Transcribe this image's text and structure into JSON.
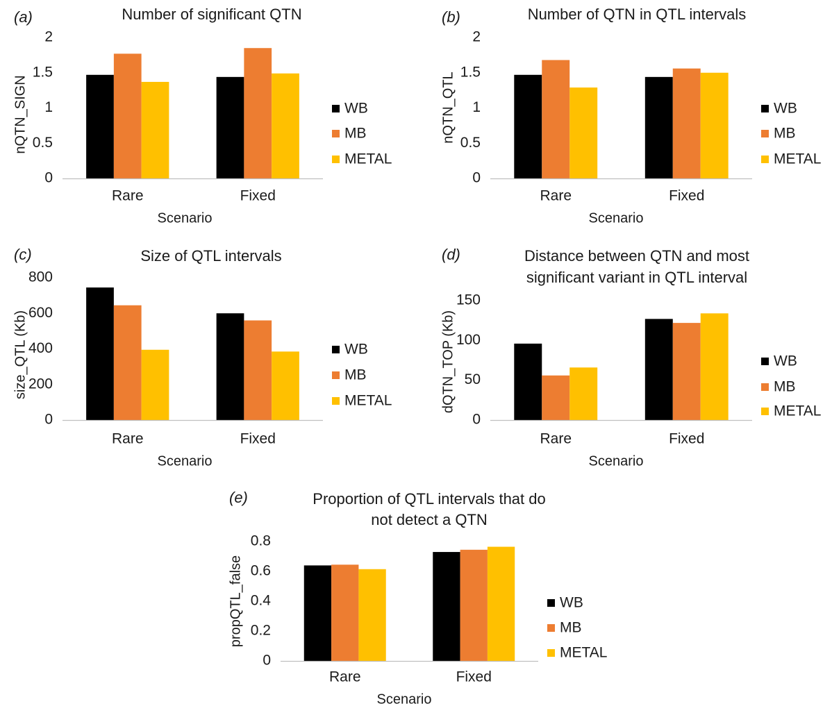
{
  "colors": {
    "WB": "#000000",
    "MB": "#ED7D31",
    "METAL": "#FFC000",
    "axis": "#bfbfbf"
  },
  "chart_data": [
    {
      "panel": "(a)",
      "type": "bar",
      "title": [
        "Number of significant QTN"
      ],
      "xlabel": "Scenario",
      "ylabel": "nQTN_SIGN",
      "categories": [
        "Rare",
        "Fixed"
      ],
      "ylim": [
        0,
        2
      ],
      "yticks": [
        "0",
        "0.5",
        "1",
        "1.5",
        "2"
      ],
      "series": [
        {
          "name": "WB",
          "values": [
            1.47,
            1.44
          ]
        },
        {
          "name": "MB",
          "values": [
            1.77,
            1.85
          ]
        },
        {
          "name": "METAL",
          "values": [
            1.37,
            1.49
          ]
        }
      ],
      "legend": "right",
      "grid": false
    },
    {
      "panel": "(b)",
      "type": "bar",
      "title": [
        "Number of QTN in QTL intervals"
      ],
      "xlabel": "Scenario",
      "ylabel": "nQTN_QTL",
      "categories": [
        "Rare",
        "Fixed"
      ],
      "ylim": [
        0,
        2
      ],
      "yticks": [
        "0",
        "0.5",
        "1",
        "1.5",
        "2"
      ],
      "series": [
        {
          "name": "WB",
          "values": [
            1.47,
            1.44
          ]
        },
        {
          "name": "MB",
          "values": [
            1.68,
            1.56
          ]
        },
        {
          "name": "METAL",
          "values": [
            1.29,
            1.5
          ]
        }
      ],
      "legend": "right",
      "grid": false
    },
    {
      "panel": "(c)",
      "type": "bar",
      "title": [
        "Size of QTL intervals"
      ],
      "xlabel": "Scenario",
      "ylabel": "size_QTL (Kb)",
      "categories": [
        "Rare",
        "Fixed"
      ],
      "ylim": [
        0,
        800
      ],
      "yticks": [
        "0",
        "200",
        "400",
        "600",
        "800"
      ],
      "series": [
        {
          "name": "WB",
          "values": [
            745,
            600
          ]
        },
        {
          "name": "MB",
          "values": [
            645,
            560
          ]
        },
        {
          "name": "METAL",
          "values": [
            395,
            385
          ]
        }
      ],
      "legend": "right",
      "grid": false
    },
    {
      "panel": "(d)",
      "type": "bar",
      "title": [
        "Distance between QTN and most",
        "significant variant in QTL interval"
      ],
      "xlabel": "Scenario",
      "ylabel": "dQTN_TOP (Kb)",
      "categories": [
        "Rare",
        "Fixed"
      ],
      "ylim": [
        0,
        150
      ],
      "yticks": [
        "0",
        "50",
        "100",
        "150"
      ],
      "series": [
        {
          "name": "WB",
          "values": [
            96,
            127
          ]
        },
        {
          "name": "MB",
          "values": [
            56,
            122
          ]
        },
        {
          "name": "METAL",
          "values": [
            66,
            134
          ]
        }
      ],
      "legend": "right",
      "grid": false
    },
    {
      "panel": "(e)",
      "type": "bar",
      "title": [
        "Proportion of QTL intervals that do",
        "not detect a QTN"
      ],
      "xlabel": "Scenario",
      "ylabel": "propQTL_false",
      "categories": [
        "Rare",
        "Fixed"
      ],
      "ylim": [
        0,
        0.8
      ],
      "yticks": [
        "0",
        "0.2",
        "0.4",
        "0.6",
        "0.8"
      ],
      "series": [
        {
          "name": "WB",
          "values": [
            0.64,
            0.73
          ]
        },
        {
          "name": "MB",
          "values": [
            0.645,
            0.745
          ]
        },
        {
          "name": "METAL",
          "values": [
            0.615,
            0.765
          ]
        }
      ],
      "legend": "right",
      "grid": false
    }
  ]
}
